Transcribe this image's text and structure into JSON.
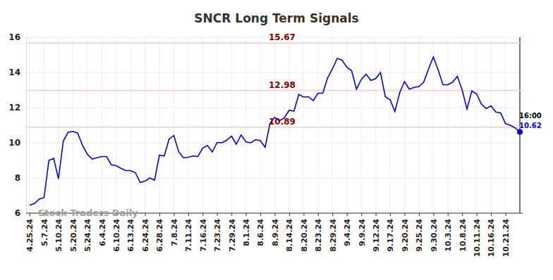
{
  "chart_data": {
    "type": "line",
    "title": "SNCR Long Term Signals",
    "categories": [
      "4.25.24",
      null,
      null,
      "5.7.24",
      null,
      null,
      "5.10.24",
      null,
      null,
      "5.20.24",
      null,
      null,
      "5.24.24",
      null,
      null,
      "6.4.24",
      null,
      null,
      "6.10.24",
      null,
      null,
      "6.13.24",
      null,
      null,
      "6.24.24",
      null,
      null,
      "6.28.24",
      null,
      null,
      "7.8.24",
      null,
      null,
      "7.11.24",
      null,
      null,
      "7.16.24",
      null,
      null,
      "7.23.24",
      null,
      null,
      "7.29.24",
      null,
      null,
      "8.1.24",
      null,
      null,
      "8.6.24",
      null,
      null,
      "8.9.24",
      null,
      null,
      "8.14.24",
      null,
      null,
      "8.20.24",
      null,
      null,
      "8.23.24",
      null,
      null,
      "8.29.24",
      null,
      null,
      "9.4.24",
      null,
      null,
      "9.9.24",
      null,
      null,
      "9.12.24",
      null,
      null,
      "9.17.24",
      null,
      null,
      "9.20.24",
      null,
      null,
      "9.25.24",
      null,
      null,
      "9.30.24",
      null,
      null,
      "10.3.24",
      null,
      null,
      "10.8.24",
      null,
      null,
      "10.11.24",
      null,
      null,
      "10.16.24",
      null,
      null,
      "10.21.24",
      null,
      null,
      null
    ],
    "values": [
      6.45,
      6.55,
      6.8,
      6.88,
      9.0,
      9.12,
      7.95,
      10.1,
      10.6,
      10.65,
      10.55,
      9.85,
      9.35,
      9.08,
      9.15,
      9.22,
      9.22,
      8.75,
      8.7,
      8.55,
      8.42,
      8.42,
      8.3,
      7.75,
      7.82,
      8.0,
      7.88,
      9.3,
      9.25,
      10.2,
      10.42,
      9.5,
      9.15,
      9.18,
      9.25,
      9.22,
      9.7,
      9.85,
      9.48,
      10.02,
      10.0,
      10.15,
      10.38,
      9.92,
      10.45,
      10.05,
      10.0,
      10.18,
      10.12,
      9.75,
      11.1,
      11.45,
      11.25,
      11.42,
      11.85,
      11.8,
      12.75,
      12.6,
      12.62,
      12.4,
      12.82,
      12.82,
      13.7,
      14.2,
      14.8,
      14.7,
      14.3,
      14.1,
      13.05,
      13.6,
      13.9,
      13.55,
      13.65,
      14.0,
      12.62,
      12.45,
      11.78,
      12.85,
      13.48,
      13.05,
      13.15,
      13.2,
      13.45,
      14.2,
      14.88,
      14.15,
      13.3,
      13.3,
      13.45,
      13.78,
      13.0,
      11.92,
      12.95,
      12.78,
      12.2,
      11.95,
      12.1,
      11.75,
      11.7,
      11.1,
      11.0,
      10.85,
      10.62
    ],
    "color": "#0000ff",
    "ylim": [
      6,
      16
    ],
    "yticks": [
      6,
      8,
      10,
      12,
      14,
      16
    ],
    "grid": true,
    "hlines": [
      {
        "value": 15.67,
        "label": "15.67"
      },
      {
        "value": 12.98,
        "label": "12.98"
      },
      {
        "value": 10.89,
        "label": "10.89"
      }
    ],
    "annotations": [
      {
        "text": "16:00"
      },
      {
        "text": "10.62",
        "value": 10.62
      },
      {
        "text": "Stock Traders Daily"
      }
    ]
  }
}
